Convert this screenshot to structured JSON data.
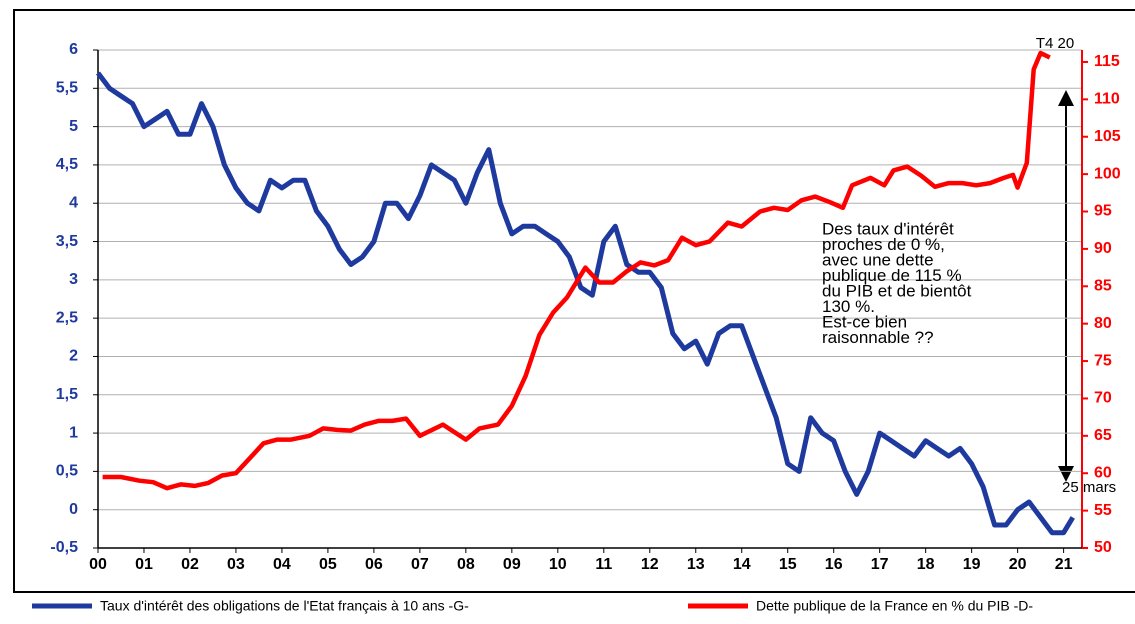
{
  "chart_data": {
    "type": "line",
    "xlim": [
      2000,
      2021.4
    ],
    "xticks": [
      {
        "value": 2000,
        "label": "00"
      },
      {
        "value": 2001,
        "label": "01"
      },
      {
        "value": 2002,
        "label": "02"
      },
      {
        "value": 2003,
        "label": "03"
      },
      {
        "value": 2004,
        "label": "04"
      },
      {
        "value": 2005,
        "label": "05"
      },
      {
        "value": 2006,
        "label": "06"
      },
      {
        "value": 2007,
        "label": "07"
      },
      {
        "value": 2008,
        "label": "08"
      },
      {
        "value": 2009,
        "label": "09"
      },
      {
        "value": 2010,
        "label": "10"
      },
      {
        "value": 2011,
        "label": "11"
      },
      {
        "value": 2012,
        "label": "12"
      },
      {
        "value": 2013,
        "label": "13"
      },
      {
        "value": 2014,
        "label": "14"
      },
      {
        "value": 2015,
        "label": "15"
      },
      {
        "value": 2016,
        "label": "16"
      },
      {
        "value": 2017,
        "label": "17"
      },
      {
        "value": 2018,
        "label": "18"
      },
      {
        "value": 2019,
        "label": "19"
      },
      {
        "value": 2020,
        "label": "20"
      },
      {
        "value": 2021,
        "label": "21"
      }
    ],
    "ylim": [
      -0.5,
      6
    ],
    "yticks": [
      {
        "value": -0.5,
        "label": "-0,5"
      },
      0,
      {
        "value": 0.5,
        "label": "0,5"
      },
      1,
      {
        "value": 1.5,
        "label": "1,5"
      },
      2,
      {
        "value": 2.5,
        "label": "2,5"
      },
      3,
      {
        "value": 3.5,
        "label": "3,5"
      },
      4,
      {
        "value": 4.5,
        "label": "4,5"
      },
      5,
      {
        "value": 5.5,
        "label": "5,5"
      },
      6
    ],
    "y2lim": [
      50,
      116.6
    ],
    "y2ticks": [
      50,
      55,
      60,
      65,
      70,
      75,
      80,
      85,
      90,
      95,
      100,
      105,
      110,
      115
    ],
    "grid": true,
    "legend": "bottom",
    "series": [
      {
        "name": "Taux d'intérêt des obligations de l'Etat français à 10 ans -G-",
        "color": "#1f3a9e",
        "x": [
          2000,
          2000.25,
          2000.5,
          2000.75,
          2001,
          2001.25,
          2001.5,
          2001.75,
          2002,
          2002.25,
          2002.5,
          2002.75,
          2003,
          2003.25,
          2003.5,
          2003.75,
          2004,
          2004.25,
          2004.5,
          2004.75,
          2005,
          2005.25,
          2005.5,
          2005.75,
          2006,
          2006.25,
          2006.5,
          2006.75,
          2007,
          2007.25,
          2007.5,
          2007.75,
          2008,
          2008.25,
          2008.5,
          2008.75,
          2009,
          2009.25,
          2009.5,
          2009.75,
          2010,
          2010.25,
          2010.5,
          2010.75,
          2011,
          2011.25,
          2011.5,
          2011.75,
          2012,
          2012.25,
          2012.5,
          2012.75,
          2013,
          2013.25,
          2013.5,
          2013.75,
          2014,
          2014.25,
          2014.5,
          2014.75,
          2015,
          2015.25,
          2015.5,
          2015.75,
          2016,
          2016.25,
          2016.5,
          2016.75,
          2017,
          2017.25,
          2017.5,
          2017.75,
          2018,
          2018.25,
          2018.5,
          2018.75,
          2019,
          2019.25,
          2019.5,
          2019.75,
          2020,
          2020.25,
          2020.5,
          2020.75,
          2021,
          2021.2
        ],
        "values": [
          5.7,
          5.5,
          5.4,
          5.3,
          5.0,
          5.1,
          5.2,
          4.9,
          4.9,
          5.3,
          5.0,
          4.5,
          4.2,
          4.0,
          3.9,
          4.3,
          4.2,
          4.3,
          4.3,
          3.9,
          3.7,
          3.4,
          3.2,
          3.3,
          3.5,
          4.0,
          4.0,
          3.8,
          4.1,
          4.5,
          4.4,
          4.3,
          4.0,
          4.4,
          4.7,
          4.0,
          3.6,
          3.7,
          3.7,
          3.6,
          3.5,
          3.3,
          2.9,
          2.8,
          3.5,
          3.7,
          3.2,
          3.1,
          3.1,
          2.9,
          2.3,
          2.1,
          2.2,
          1.9,
          2.3,
          2.4,
          2.4,
          2.0,
          1.6,
          1.2,
          0.6,
          0.5,
          1.2,
          1.0,
          0.9,
          0.5,
          0.2,
          0.5,
          1.0,
          0.9,
          0.8,
          0.7,
          0.9,
          0.8,
          0.7,
          0.8,
          0.6,
          0.3,
          -0.2,
          -0.2,
          0.0,
          0.1,
          -0.1,
          -0.3,
          -0.3,
          -0.1
        ]
      },
      {
        "name": "Dette publique de la France en % du PIB -D-",
        "color": "#ff0000",
        "axis": "y2",
        "x": [
          2000.1,
          2000.5,
          2000.9,
          2001.2,
          2001.5,
          2001.8,
          2002.1,
          2002.4,
          2002.7,
          2003.0,
          2003.3,
          2003.6,
          2003.9,
          2004.2,
          2004.6,
          2004.9,
          2005.2,
          2005.5,
          2005.8,
          2006.1,
          2006.4,
          2006.7,
          2007.0,
          2007.5,
          2008.0,
          2008.3,
          2008.7,
          2009.0,
          2009.3,
          2009.6,
          2009.9,
          2010.2,
          2010.6,
          2010.9,
          2011.2,
          2011.5,
          2011.8,
          2012.1,
          2012.4,
          2012.7,
          2013.0,
          2013.3,
          2013.7,
          2014.0,
          2014.4,
          2014.7,
          2015.0,
          2015.3,
          2015.6,
          2015.9,
          2016.2,
          2016.4,
          2016.8,
          2017.1,
          2017.3,
          2017.6,
          2017.9,
          2018.2,
          2018.5,
          2018.8,
          2019.1,
          2019.4,
          2019.7,
          2019.9,
          2020.0,
          2020.2,
          2020.35,
          2020.5,
          2020.7
        ],
        "values": [
          59.5,
          59.5,
          59,
          58.8,
          58,
          58.5,
          58.3,
          58.7,
          59.7,
          60.0,
          62,
          64,
          64.5,
          64.5,
          65,
          66,
          65.8,
          65.7,
          66.5,
          67,
          67,
          67.3,
          65,
          66.5,
          64.5,
          66,
          66.5,
          69,
          73,
          78.5,
          81.5,
          83.5,
          87.5,
          85.5,
          85.5,
          87,
          88.2,
          87.8,
          88.5,
          91.5,
          90.5,
          91,
          93.5,
          93,
          95,
          95.5,
          95.2,
          96.5,
          97,
          96.3,
          95.5,
          98.5,
          99.5,
          98.5,
          100.5,
          101,
          99.8,
          98.3,
          98.8,
          98.8,
          98.5,
          98.8,
          99.5,
          99.9,
          98.2,
          101.5,
          114,
          116.2,
          115.6
        ]
      }
    ],
    "annotations": {
      "comment": [
        "Des taux d'intérêt",
        "proches de 0 %,",
        "avec une dette",
        "publique de 115 %",
        "du PIB et de bientôt",
        "130 %.",
        "Est-ce bien",
        "raisonnable ??"
      ],
      "last_quarter": "T4 20",
      "last_date": "25 mars"
    }
  }
}
